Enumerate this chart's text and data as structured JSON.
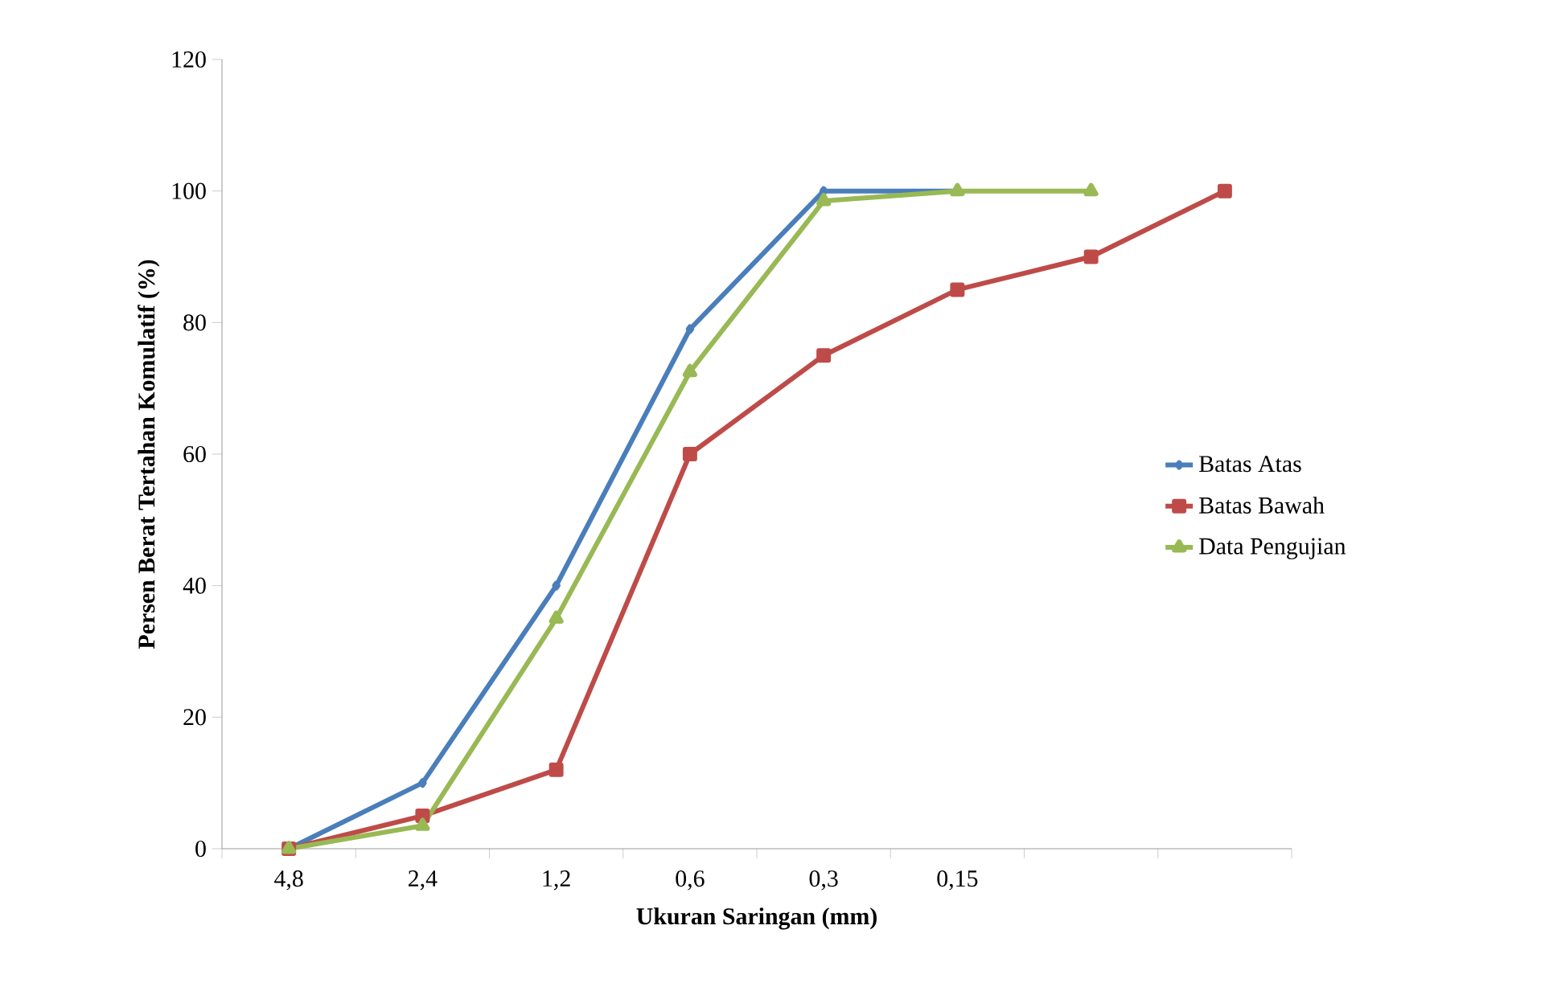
{
  "chart_data": {
    "type": "line",
    "xlabel": "Ukuran Saringan (mm)",
    "ylabel": "Persen Berat Tertahan Komulatif (%)",
    "categories": [
      "4,8",
      "2,4",
      "1,2",
      "0,6",
      "0,3",
      "0,15",
      null,
      null
    ],
    "ylim": [
      0,
      120
    ],
    "yticks": [
      0,
      20,
      40,
      60,
      80,
      100,
      120
    ],
    "legend": "right",
    "grid": false,
    "series": [
      {
        "name": "Batas Atas",
        "color": "#4a7ebb",
        "marker": "diamond",
        "values": [
          0,
          10,
          40,
          79,
          100,
          100,
          null,
          null
        ]
      },
      {
        "name": "Batas Bawah",
        "color": "#be4b48",
        "marker": "square",
        "values": [
          0,
          5,
          12,
          60,
          75,
          85,
          90,
          100
        ]
      },
      {
        "name": "Data Pengujian",
        "color": "#98b954",
        "marker": "triangle",
        "values": [
          0,
          3.5,
          35,
          72.5,
          98.5,
          100,
          100,
          null
        ]
      }
    ]
  }
}
